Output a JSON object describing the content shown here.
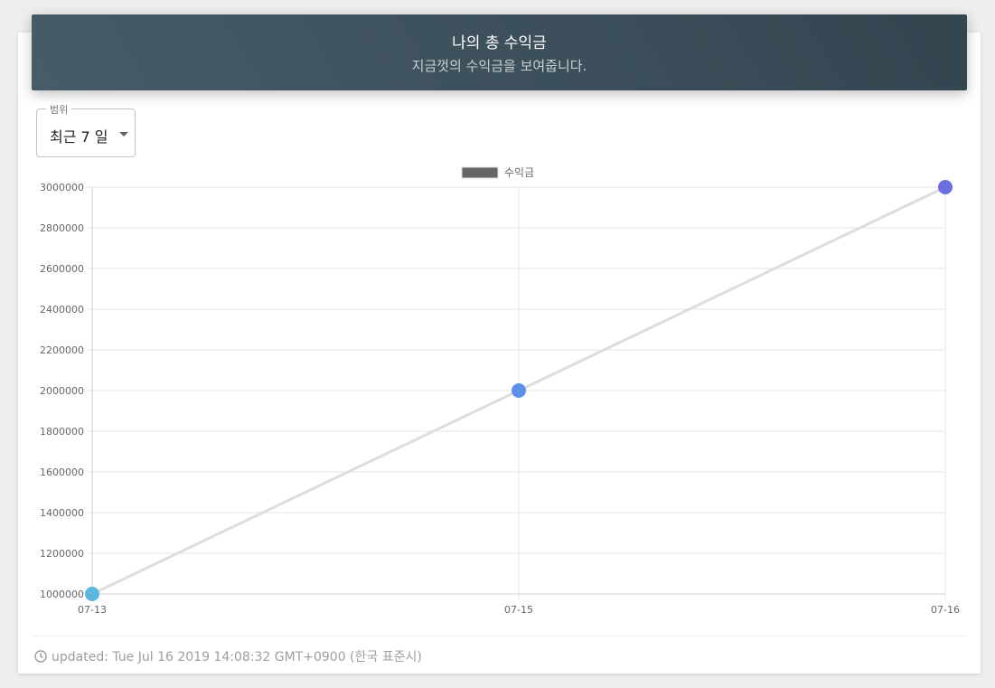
{
  "header": {
    "title": "나의 총 수익금",
    "subtitle": "지금껏의 수익금을 보여줍니다."
  },
  "range": {
    "label": "범위",
    "selected": "최근 7 일"
  },
  "chart_data": {
    "type": "line",
    "categories": [
      "07-13",
      "07-15",
      "07-16"
    ],
    "series": [
      {
        "name": "수익금",
        "values": [
          1000000,
          2000000,
          3000000
        ]
      }
    ],
    "ylim": [
      1000000,
      3000000
    ],
    "yticks": [
      "1000000",
      "1200000",
      "1400000",
      "1600000",
      "1800000",
      "2000000",
      "2200000",
      "2400000",
      "2600000",
      "2800000",
      "3000000"
    ],
    "legend": "top-center",
    "grid": true,
    "colors": {
      "line": "#dddddd",
      "legend_swatch": "#666666",
      "points": [
        "#5bb7e0",
        "#5c8fe6",
        "#6a6fe0"
      ]
    }
  },
  "footer": {
    "updated": "updated: Tue Jul 16 2019 14:08:32 GMT+0900 (한국 표준시)"
  }
}
